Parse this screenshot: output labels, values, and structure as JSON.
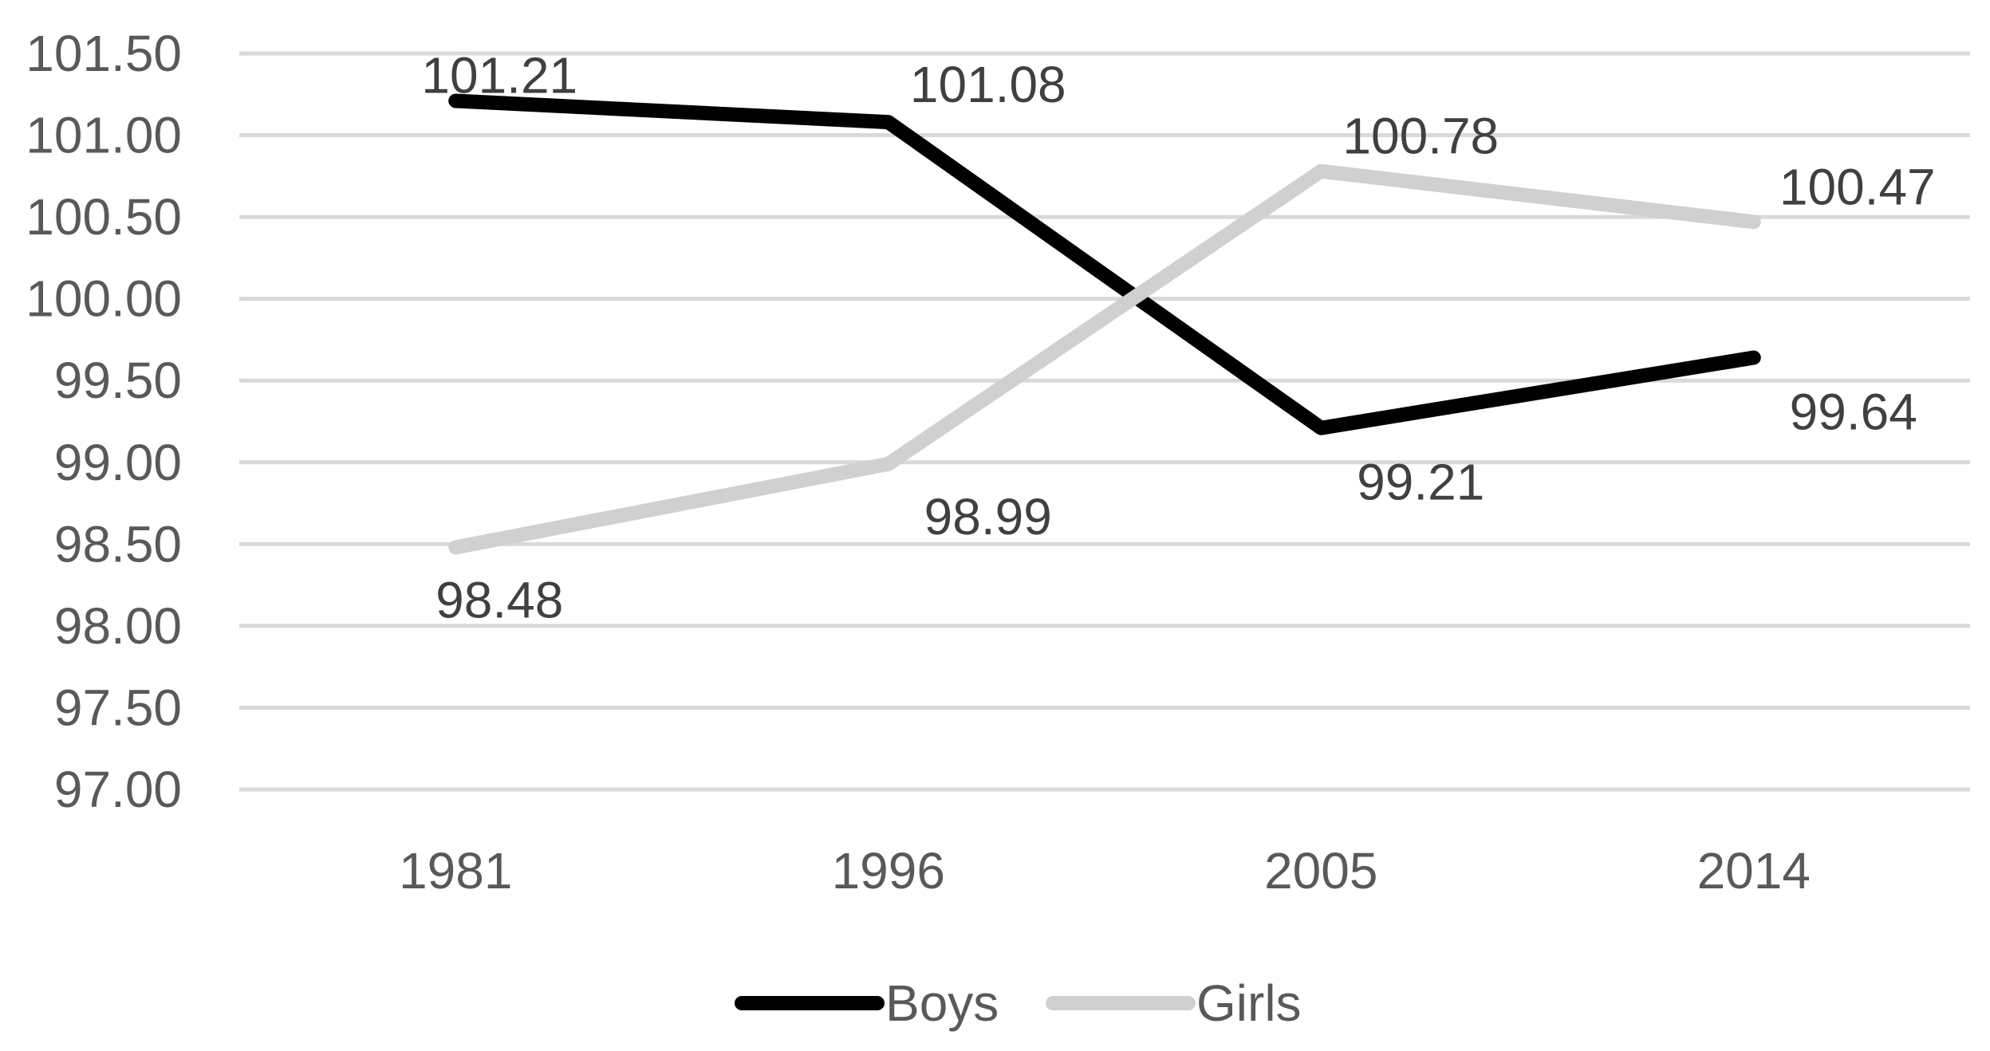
{
  "chart_data": {
    "type": "line",
    "title": "",
    "xlabel": "",
    "ylabel": "",
    "categories": [
      "1981",
      "1996",
      "2005",
      "2014"
    ],
    "series": [
      {
        "name": "Boys",
        "values": [
          101.21,
          101.08,
          99.21,
          99.64
        ],
        "color": "#000000",
        "labels": [
          "101.21",
          "101.08",
          "99.21",
          "99.64"
        ]
      },
      {
        "name": "Girls",
        "values": [
          98.48,
          98.99,
          100.78,
          100.47
        ],
        "color": "#d0d0d0",
        "labels": [
          "98.48",
          "98.99",
          "100.78",
          "100.47"
        ]
      }
    ],
    "ylim": [
      97.0,
      101.5
    ],
    "yticks": [
      "97.00",
      "97.50",
      "98.00",
      "98.50",
      "99.00",
      "99.50",
      "100.00",
      "100.50",
      "101.00",
      "101.50"
    ],
    "grid": true,
    "legend_position": "bottom"
  }
}
